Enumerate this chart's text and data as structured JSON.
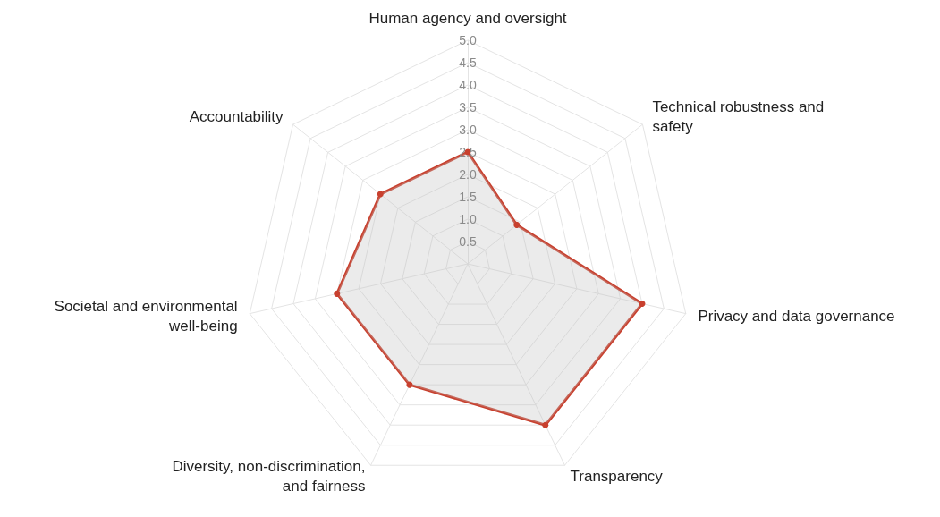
{
  "chart_data": {
    "type": "radar",
    "categories": [
      "Human agency and oversight",
      "Technical robustness and safety",
      "Privacy and data governance",
      "Transparency",
      "Diversity, non-discrimination, and fairness",
      "Societal and environmental well-being",
      "Accountability"
    ],
    "series": [
      {
        "color": "#c8402e",
        "values": [
          2.5,
          1.4,
          4.0,
          4.0,
          3.0,
          3.0,
          2.5
        ]
      }
    ],
    "ylim": [
      0,
      5
    ],
    "yticks": [
      {
        "value": 0.5,
        "label": "0.5"
      },
      {
        "value": 1,
        "label": "1.0"
      },
      {
        "value": 1.5,
        "label": "1.5"
      },
      {
        "value": 2,
        "label": "2.0"
      },
      {
        "value": 2.5,
        "label": "2.5"
      },
      {
        "value": 3,
        "label": "3.0"
      },
      {
        "value": 3.5,
        "label": "3.5"
      },
      {
        "value": 4,
        "label": "4.0"
      },
      {
        "value": 4.5,
        "label": "4.5"
      },
      {
        "value": 5,
        "label": "5.0"
      }
    ],
    "grid": true,
    "marker": "circle",
    "line_style": "solid"
  }
}
